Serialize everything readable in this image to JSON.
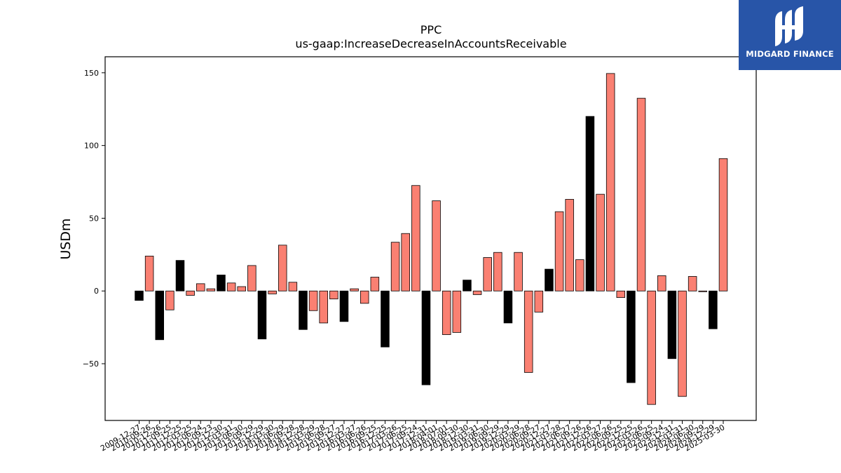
{
  "logo": {
    "name": "MIDGARD FINANCE",
    "icon": "midgard-logo-icon"
  },
  "chart_data": {
    "type": "bar",
    "title": "PPC",
    "subtitle": "us-gaap:IncreaseDecreaseInAccountsReceivable",
    "xlabel": "",
    "ylabel": "USDm",
    "ylim": [
      -89,
      161
    ],
    "yticks": [
      -50,
      0,
      50,
      100,
      150
    ],
    "grid": false,
    "legend": "none",
    "colors": {
      "annual": "#000000",
      "quarterly": "#fa8072",
      "edge": "#000000"
    },
    "categories": [
      "2009-12-27",
      "2010-09-26",
      "2010-12-26",
      "2011-09-25",
      "2011-12-25",
      "2012-03-25",
      "2012-06-24",
      "2012-09-23",
      "2012-12-30",
      "2013-03-31",
      "2013-06-30",
      "2013-09-29",
      "2013-12-29",
      "2014-03-30",
      "2014-06-29",
      "2014-09-28",
      "2014-12-28",
      "2015-03-29",
      "2015-06-28",
      "2015-09-27",
      "2015-12-27",
      "2016-03-27",
      "2016-06-26",
      "2016-09-25",
      "2016-12-25",
      "2017-03-26",
      "2017-06-25",
      "2017-09-24",
      "2017-12-31",
      "2018-04-01",
      "2018-07-01",
      "2018-09-30",
      "2018-12-30",
      "2019-03-31",
      "2019-06-30",
      "2019-09-29",
      "2019-12-29",
      "2020-03-29",
      "2020-06-28",
      "2020-09-27",
      "2020-12-27",
      "2021-03-28",
      "2021-06-27",
      "2021-09-26",
      "2021-12-26",
      "2022-03-27",
      "2022-06-26",
      "2022-09-25",
      "2022-12-25",
      "2023-03-26",
      "2023-06-25",
      "2023-09-24",
      "2023-12-31",
      "2024-03-31",
      "2024-06-30",
      "2024-09-29",
      "2024-12-29",
      "2025-03-30"
    ],
    "values": [
      -6.5,
      24,
      -33.5,
      -13,
      21,
      -3,
      5,
      1.5,
      11,
      5.5,
      3,
      17.5,
      -33,
      -2,
      31.5,
      6,
      -26.5,
      -13.5,
      -22,
      -5.5,
      -21,
      1.5,
      -8.5,
      9.5,
      -38.5,
      33.5,
      39.5,
      72.5,
      -64.5,
      62,
      -30,
      -28.5,
      7.5,
      -2.5,
      23,
      26.5,
      -22,
      26.5,
      -56,
      -14.5,
      15,
      54.5,
      63,
      21.5,
      120,
      66.5,
      149.5,
      -4.5,
      -63,
      132.5,
      -78,
      10.5,
      -46.5,
      -72.5,
      10,
      -0.5,
      -26,
      91
    ],
    "period_type": [
      "annual",
      "quarterly",
      "annual",
      "quarterly",
      "annual",
      "quarterly",
      "quarterly",
      "quarterly",
      "annual",
      "quarterly",
      "quarterly",
      "quarterly",
      "annual",
      "quarterly",
      "quarterly",
      "quarterly",
      "annual",
      "quarterly",
      "quarterly",
      "quarterly",
      "annual",
      "quarterly",
      "quarterly",
      "quarterly",
      "annual",
      "quarterly",
      "quarterly",
      "quarterly",
      "annual",
      "quarterly",
      "quarterly",
      "quarterly",
      "annual",
      "quarterly",
      "quarterly",
      "quarterly",
      "annual",
      "quarterly",
      "quarterly",
      "quarterly",
      "annual",
      "quarterly",
      "quarterly",
      "quarterly",
      "annual",
      "quarterly",
      "quarterly",
      "quarterly",
      "annual",
      "quarterly",
      "quarterly",
      "quarterly",
      "annual",
      "quarterly",
      "quarterly",
      "quarterly",
      "annual",
      "quarterly"
    ]
  }
}
